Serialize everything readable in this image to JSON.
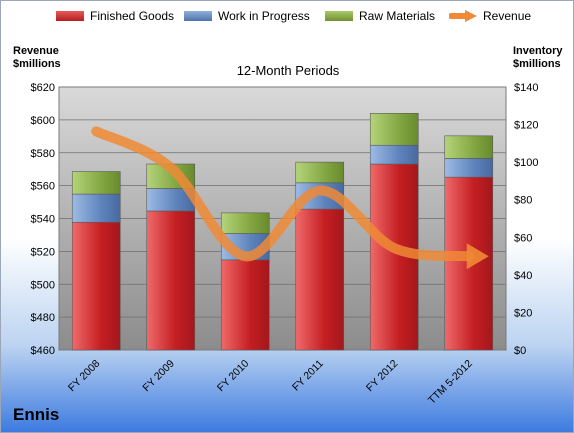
{
  "chart_data": {
    "type": "bar",
    "title": "12-Month Periods",
    "company": "Ennis",
    "categories": [
      "FY 2008",
      "FY 2009",
      "FY 2010",
      "FY 2011",
      "FY 2012",
      "TTM 5-2012"
    ],
    "left_axis": {
      "label_line1": "Revenue",
      "label_line2": "$millions",
      "min": 460,
      "max": 620,
      "step": 20,
      "ticks": [
        "$460",
        "$480",
        "$500",
        "$520",
        "$540",
        "$560",
        "$580",
        "$600",
        "$620"
      ]
    },
    "right_axis": {
      "label_line1": "Inventory",
      "label_line2": "$millions",
      "min": 0,
      "max": 140,
      "step": 20,
      "ticks": [
        "$0",
        "$20",
        "$40",
        "$60",
        "$80",
        "$100",
        "$120",
        "$140"
      ]
    },
    "stacked": true,
    "series": [
      {
        "name": "Finished Goods",
        "axis": "right",
        "color": "#d42a2e",
        "values": [
          68,
          74,
          48,
          75,
          99,
          92
        ]
      },
      {
        "name": "Work in Progress",
        "axis": "right",
        "color": "#6b8fc4",
        "values": [
          15,
          12,
          14,
          14,
          10,
          10
        ]
      },
      {
        "name": "Raw Materials",
        "axis": "right",
        "color": "#8fb04c",
        "values": [
          12,
          13,
          11,
          11,
          17,
          12
        ]
      },
      {
        "name": "Revenue",
        "type": "line",
        "axis": "left",
        "color": "#f08a35",
        "values": [
          593,
          571,
          517,
          557,
          522,
          517
        ]
      }
    ],
    "grid": true,
    "legend_position": "top"
  }
}
